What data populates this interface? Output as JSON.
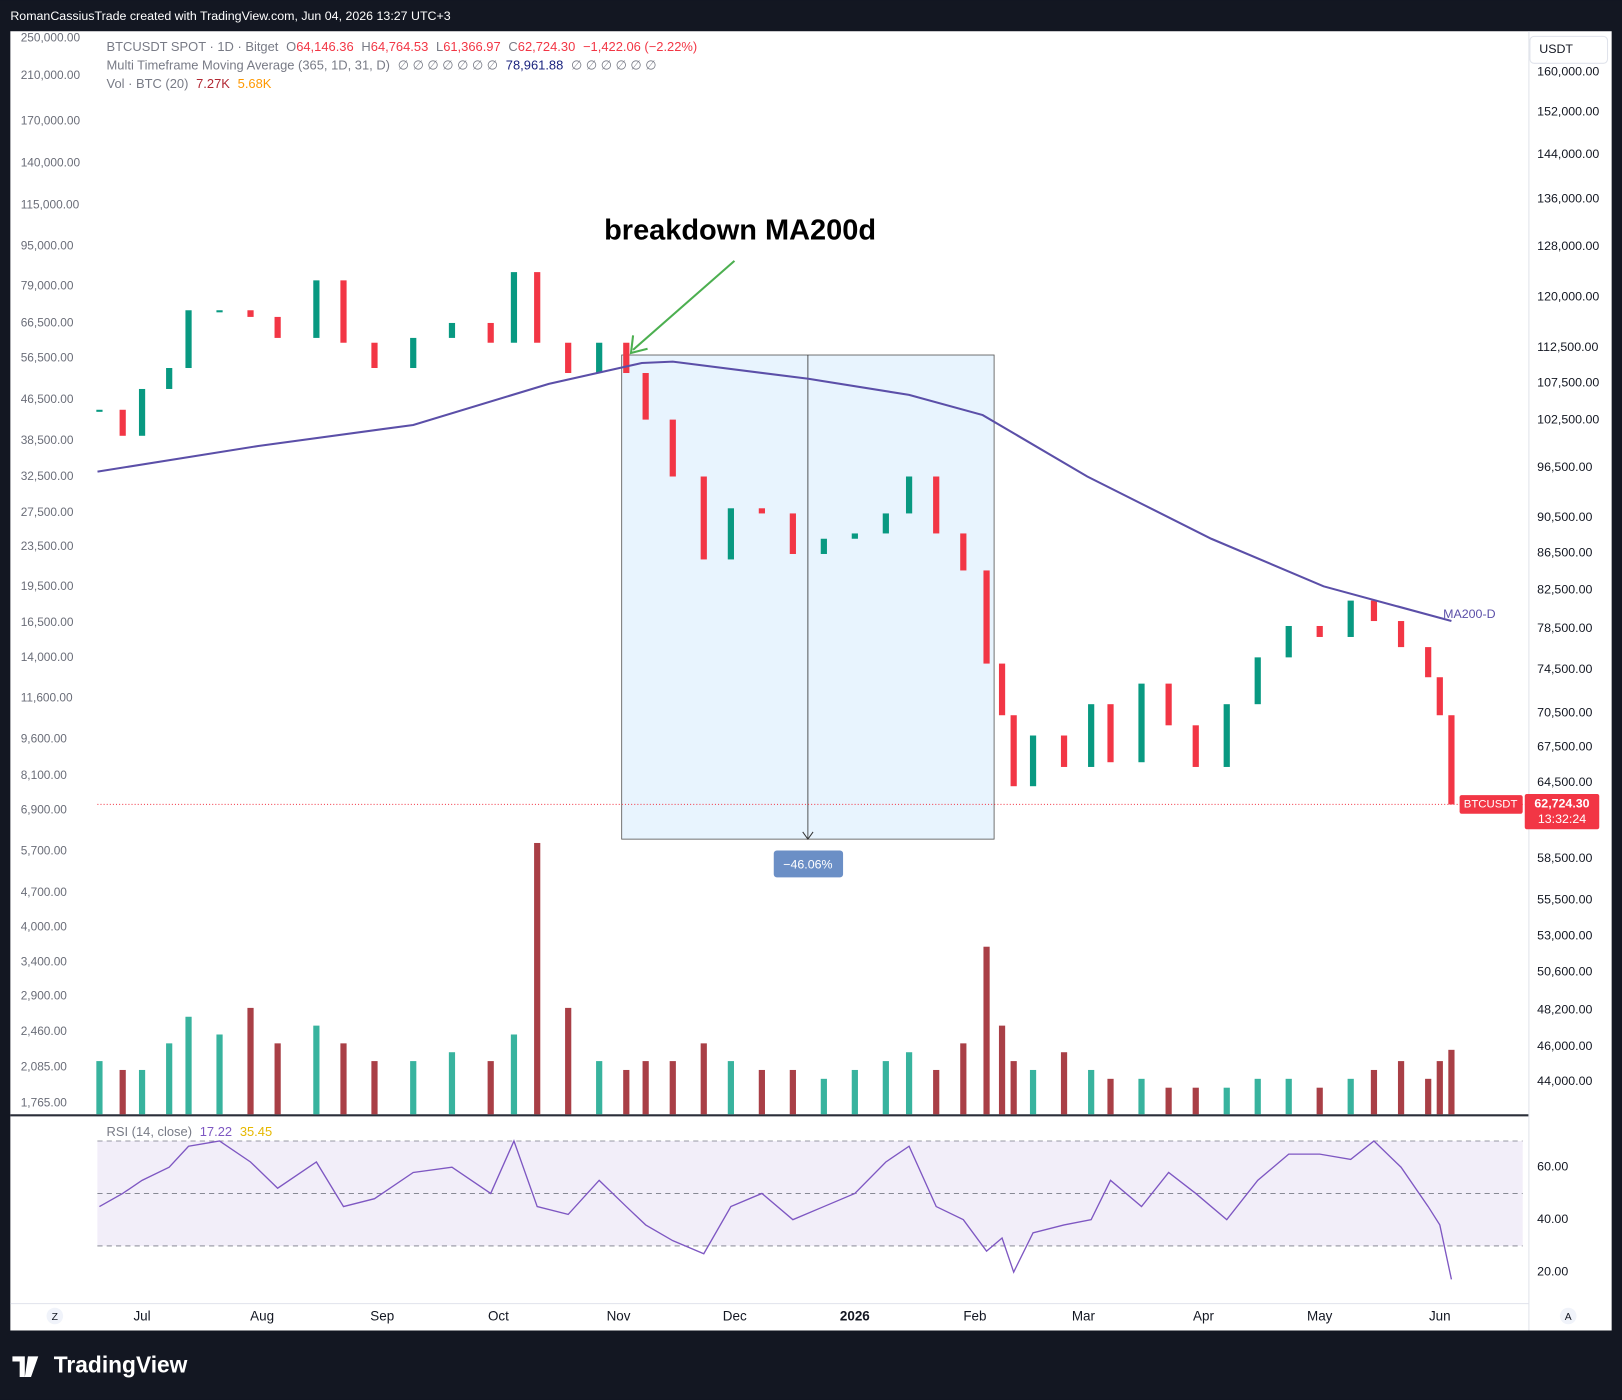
{
  "header": {
    "caption": "RomanCassiusTrade created with TradingView.com, Jun 04, 2026 13:27 UTC+3"
  },
  "legend": {
    "symbol": "BTCUSDT SPOT · 1D · Bitget",
    "ohlc": [
      {
        "key": "O",
        "value": "64,146.36"
      },
      {
        "key": "H",
        "value": "64,764.53"
      },
      {
        "key": "L",
        "value": "61,366.97"
      },
      {
        "key": "C",
        "value": "62,724.30"
      }
    ],
    "change": "−1,422.06 (−2.22%)",
    "ma": {
      "name": "Multi Timeframe Moving Average (365, 1D, 31, D)",
      "before": "∅ ∅ ∅ ∅ ∅ ∅ ∅",
      "value": "78,961.88",
      "after": "∅ ∅ ∅ ∅ ∅ ∅"
    },
    "vol": {
      "name": "Vol · BTC (20)",
      "value": "7.27K",
      "ma": "5.68K"
    }
  },
  "currency": "USDT",
  "scale_buttons": [
    "Z",
    "A"
  ],
  "footer": {
    "brand": "TradingView"
  },
  "chart_data": [
    {
      "type": "candles",
      "annotations": {
        "breakdown": "breakdown MA200d",
        "measure": "−46.06%"
      },
      "last_price": {
        "tag": "BTCUSDT",
        "label": "62,724.30",
        "countdown": "13:32:24"
      },
      "log": true,
      "xlim": [
        -34,
        358
      ],
      "xticks": [
        {
          "value": 0,
          "label": "Jul"
        },
        {
          "value": 31,
          "label": "Aug"
        },
        {
          "value": 62,
          "label": "Sep"
        },
        {
          "value": 92,
          "label": "Oct"
        },
        {
          "value": 123,
          "label": "Nov"
        },
        {
          "value": 153,
          "label": "Dec"
        },
        {
          "value": 184,
          "label": "2026"
        },
        {
          "value": 215,
          "label": "Feb"
        },
        {
          "value": 243,
          "label": "Mar"
        },
        {
          "value": 274,
          "label": "Apr"
        },
        {
          "value": 304,
          "label": "May"
        },
        {
          "value": 335,
          "label": "Jun"
        }
      ],
      "ylim": [
        42200,
        168600
      ],
      "yticks": [
        {
          "value": 160000,
          "label": "160,000.00"
        },
        {
          "value": 152000,
          "label": "152,000.00"
        },
        {
          "value": 144000,
          "label": "144,000.00"
        },
        {
          "value": 136000,
          "label": "136,000.00"
        },
        {
          "value": 128000,
          "label": "128,000.00"
        },
        {
          "value": 120000,
          "label": "120,000.00"
        },
        {
          "value": 112500,
          "label": "112,500.00"
        },
        {
          "value": 107500,
          "label": "107,500.00"
        },
        {
          "value": 102500,
          "label": "102,500.00"
        },
        {
          "value": 96500,
          "label": "96,500.00"
        },
        {
          "value": 90500,
          "label": "90,500.00"
        },
        {
          "value": 86500,
          "label": "86,500.00"
        },
        {
          "value": 82500,
          "label": "82,500.00"
        },
        {
          "value": 78500,
          "label": "78,500.00"
        },
        {
          "value": 74500,
          "label": "74,500.00"
        },
        {
          "value": 70500,
          "label": "70,500.00"
        },
        {
          "value": 67500,
          "label": "67,500.00"
        },
        {
          "value": 64500,
          "label": "64,500.00"
        },
        {
          "value": 58500,
          "label": "58,500.00"
        },
        {
          "value": 55500,
          "label": "55,500.00"
        },
        {
          "value": 53000,
          "label": "53,000.00"
        },
        {
          "value": 50600,
          "label": "50,600.00"
        },
        {
          "value": 48200,
          "label": "48,200.00"
        },
        {
          "value": 46000,
          "label": "46,000.00"
        },
        {
          "value": 44000,
          "label": "44,000.00"
        }
      ],
      "y2lim": [
        1676,
        258700
      ],
      "y2ticks": [
        {
          "value": 250000,
          "label": "250,000.00"
        },
        {
          "value": 210000,
          "label": "210,000.00"
        },
        {
          "value": 170000,
          "label": "170,000.00"
        },
        {
          "value": 140000,
          "label": "140,000.00"
        },
        {
          "value": 115000,
          "label": "115,000.00"
        },
        {
          "value": 95000,
          "label": "95,000.00"
        },
        {
          "value": 79000,
          "label": "79,000.00"
        },
        {
          "value": 66500,
          "label": "66,500.00"
        },
        {
          "value": 56500,
          "label": "56,500.00"
        },
        {
          "value": 46500,
          "label": "46,500.00"
        },
        {
          "value": 38500,
          "label": "38,500.00"
        },
        {
          "value": 32500,
          "label": "32,500.00"
        },
        {
          "value": 27500,
          "label": "27,500.00"
        },
        {
          "value": 23500,
          "label": "23,500.00"
        },
        {
          "value": 19500,
          "label": "19,500.00"
        },
        {
          "value": 16500,
          "label": "16,500.00"
        },
        {
          "value": 14000,
          "label": "14,000.00"
        },
        {
          "value": 11600,
          "label": "11,600.00"
        },
        {
          "value": 9600,
          "label": "9,600.00"
        },
        {
          "value": 8100,
          "label": "8,100.00"
        },
        {
          "value": 6900,
          "label": "6,900.00"
        },
        {
          "value": 5700,
          "label": "5,700.00"
        },
        {
          "value": 4700,
          "label": "4,700.00"
        },
        {
          "value": 4000,
          "label": "4,000.00"
        },
        {
          "value": 3400,
          "label": "3,400.00"
        },
        {
          "value": 2900,
          "label": "2,900.00"
        },
        {
          "value": 2460,
          "label": "2,460.00"
        },
        {
          "value": 2085,
          "label": "2,085.00"
        },
        {
          "value": 1765,
          "label": "1,765.00"
        }
      ],
      "up_color": "#089981",
      "down_color": "#f23645",
      "series": [
        {
          "name": "BTCUSDT",
          "color": "#f23645",
          "x": [
            -11,
            -5,
            0,
            7,
            12,
            20,
            28,
            35,
            45,
            52,
            60,
            70,
            80,
            90,
            96,
            102,
            110,
            118,
            125,
            130,
            137,
            145,
            152,
            160,
            168,
            176,
            184,
            192,
            198,
            205,
            212,
            218,
            222,
            225,
            230,
            238,
            245,
            250,
            258,
            265,
            272,
            280,
            288,
            296,
            304,
            312,
            318,
            325,
            332,
            335,
            338
          ],
          "values": [
            103900,
            100500,
            106700,
            109600,
            118000,
            118000,
            117000,
            113900,
            122600,
            113200,
            109600,
            113900,
            116100,
            113200,
            123900,
            113200,
            108900,
            113200,
            108900,
            102600,
            95400,
            85800,
            91600,
            91000,
            86400,
            88100,
            88700,
            91000,
            95400,
            88700,
            84600,
            75100,
            70300,
            64200,
            68500,
            65800,
            71300,
            66200,
            73200,
            69400,
            65800,
            71300,
            75700,
            78800,
            77700,
            81400,
            79300,
            76700,
            73800,
            70300,
            62724.3
          ]
        },
        {
          "name": "MA200-D",
          "color": "#5b4fa8",
          "x": [
            -11.5,
            30,
            70,
            105,
            129,
            137,
            172,
            198,
            217,
            244,
            276,
            305,
            338
          ],
          "values": [
            96000,
            99200,
            101900,
            107400,
            110300,
            110500,
            108100,
            105900,
            103200,
            95400,
            88100,
            82900,
            79300
          ]
        }
      ]
    },
    {
      "type": "bar",
      "x": [
        -11,
        -5,
        0,
        7,
        12,
        20,
        28,
        35,
        45,
        52,
        60,
        70,
        80,
        90,
        96,
        102,
        110,
        118,
        125,
        130,
        137,
        145,
        152,
        160,
        168,
        176,
        184,
        192,
        198,
        205,
        212,
        218,
        222,
        225,
        230,
        238,
        245,
        250,
        258,
        265,
        272,
        280,
        288,
        296,
        304,
        312,
        318,
        325,
        332,
        335,
        338
      ],
      "values": [
        6,
        5,
        5,
        8,
        11,
        9,
        12,
        8,
        10,
        8,
        6,
        6,
        7,
        6,
        9,
        30.6,
        12,
        6,
        5,
        6,
        6,
        8,
        6,
        5,
        5,
        4,
        5,
        6,
        7,
        5,
        8,
        18.9,
        10,
        6,
        5,
        7,
        5,
        4,
        4,
        3,
        3,
        3,
        4,
        4,
        3,
        4,
        5,
        6,
        4,
        6,
        7.27
      ],
      "ylim": [
        0,
        35
      ]
    },
    {
      "type": "line",
      "name": "RSI (14, close)",
      "legend_values": [
        "17.22",
        "35.45"
      ],
      "color": "#7e57c2",
      "x": [
        -11,
        -5,
        0,
        7,
        12,
        20,
        28,
        35,
        45,
        52,
        60,
        70,
        80,
        90,
        96,
        102,
        110,
        118,
        125,
        130,
        137,
        145,
        152,
        160,
        168,
        176,
        184,
        192,
        198,
        205,
        212,
        218,
        222,
        225,
        230,
        238,
        245,
        250,
        258,
        265,
        272,
        280,
        288,
        296,
        304,
        312,
        318,
        325,
        332,
        335,
        338
      ],
      "values": [
        45,
        50,
        55,
        60,
        68,
        70,
        62,
        52,
        62,
        45,
        48,
        58,
        60,
        50,
        70,
        45,
        42,
        55,
        45,
        38,
        32,
        27,
        45,
        50,
        40,
        45,
        50,
        62,
        68,
        45,
        40,
        28,
        33,
        20,
        35,
        38,
        40,
        55,
        45,
        58,
        50,
        40,
        55,
        65,
        65,
        63,
        70,
        60,
        45,
        38,
        17.22
      ],
      "levels": [
        30,
        50,
        70
      ],
      "ylim": [
        8,
        79
      ],
      "yticks": [
        {
          "value": 60,
          "label": "60.00"
        },
        {
          "value": 40,
          "label": "40.00"
        },
        {
          "value": 20,
          "label": "20.00"
        }
      ]
    }
  ]
}
